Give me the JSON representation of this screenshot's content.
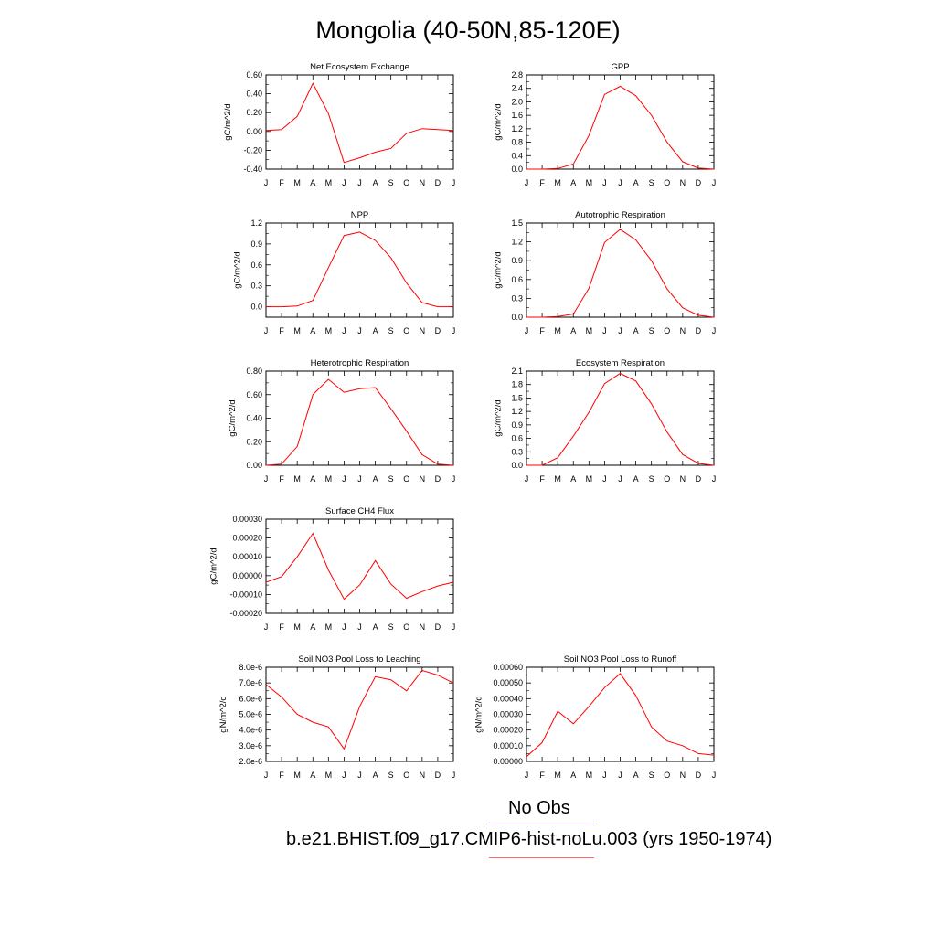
{
  "title": "Mongolia (40-50N,85-120E)",
  "legend": {
    "obs_label": "No Obs",
    "obs_color": "#6b6be6",
    "model_label": "b.e21.BHIST.f09_g17.CMIP6-hist-noLu.003 (yrs 1950-1974)",
    "model_color": "#ff6b6b"
  },
  "chart_data": [
    {
      "type": "line",
      "title": "Net Ecosystem Exchange",
      "ylabel": "gC/m^2/d",
      "categories": [
        "J",
        "F",
        "M",
        "A",
        "M",
        "J",
        "J",
        "A",
        "S",
        "O",
        "N",
        "D",
        "J"
      ],
      "ylim": [
        -0.4,
        0.6
      ],
      "yticks": [
        -0.4,
        -0.2,
        0.0,
        0.2,
        0.4,
        0.6
      ],
      "ytick_labels": [
        "-0.40",
        "-0.20",
        "0.00",
        "0.20",
        "0.40",
        "0.60"
      ],
      "series": [
        {
          "color": "#ff0000",
          "values": [
            0.01,
            0.02,
            0.16,
            0.51,
            0.19,
            -0.33,
            -0.28,
            -0.22,
            -0.18,
            -0.02,
            0.03,
            0.02,
            0.01
          ]
        }
      ]
    },
    {
      "type": "line",
      "title": "GPP",
      "ylabel": "gC/m^2/d",
      "categories": [
        "J",
        "F",
        "M",
        "A",
        "M",
        "J",
        "J",
        "A",
        "S",
        "O",
        "N",
        "D",
        "J"
      ],
      "ylim": [
        0,
        2.8
      ],
      "yticks": [
        0,
        0.4,
        0.8,
        1.2,
        1.6,
        2.0,
        2.4,
        2.8
      ],
      "ytick_labels": [
        "0.0",
        "0.4",
        "0.8",
        "1.2",
        "1.6",
        "2.0",
        "2.4",
        "2.8"
      ],
      "series": [
        {
          "color": "#ff0000",
          "values": [
            0.0,
            0.0,
            0.02,
            0.15,
            1.0,
            2.22,
            2.46,
            2.18,
            1.6,
            0.8,
            0.22,
            0.03,
            0.0
          ]
        }
      ]
    },
    {
      "type": "line",
      "title": "NPP",
      "ylabel": "gC/m^2/d",
      "categories": [
        "J",
        "F",
        "M",
        "A",
        "M",
        "J",
        "J",
        "A",
        "S",
        "O",
        "N",
        "D",
        "J"
      ],
      "ylim": [
        -0.15,
        1.2
      ],
      "yticks": [
        0.0,
        0.3,
        0.6,
        0.9,
        1.2
      ],
      "ytick_labels": [
        "0.0",
        "0.3",
        "0.6",
        "0.9",
        "1.2"
      ],
      "series": [
        {
          "color": "#ff0000",
          "values": [
            0.0,
            0.0,
            0.01,
            0.09,
            0.56,
            1.02,
            1.07,
            0.95,
            0.7,
            0.34,
            0.06,
            0.0,
            0.0
          ]
        }
      ]
    },
    {
      "type": "line",
      "title": "Autotrophic Respiration",
      "ylabel": "gC/m^2/d",
      "categories": [
        "J",
        "F",
        "M",
        "A",
        "M",
        "J",
        "J",
        "A",
        "S",
        "O",
        "N",
        "D",
        "J"
      ],
      "ylim": [
        0,
        1.5
      ],
      "yticks": [
        0.0,
        0.3,
        0.6,
        0.9,
        1.2,
        1.5
      ],
      "ytick_labels": [
        "0.0",
        "0.3",
        "0.6",
        "0.9",
        "1.2",
        "1.5"
      ],
      "series": [
        {
          "color": "#ff0000",
          "values": [
            0.0,
            0.0,
            0.01,
            0.05,
            0.46,
            1.19,
            1.4,
            1.23,
            0.9,
            0.45,
            0.15,
            0.03,
            0.0
          ]
        }
      ]
    },
    {
      "type": "line",
      "title": "Heterotrophic Respiration",
      "ylabel": "gC/m^2/d",
      "categories": [
        "J",
        "F",
        "M",
        "A",
        "M",
        "J",
        "J",
        "A",
        "S",
        "O",
        "N",
        "D",
        "J"
      ],
      "ylim": [
        0,
        0.8
      ],
      "yticks": [
        0.0,
        0.2,
        0.4,
        0.6,
        0.8
      ],
      "ytick_labels": [
        "0.00",
        "0.20",
        "0.40",
        "0.60",
        "0.80"
      ],
      "series": [
        {
          "color": "#ff0000",
          "values": [
            0.0,
            0.01,
            0.16,
            0.6,
            0.73,
            0.62,
            0.65,
            0.66,
            0.48,
            0.29,
            0.09,
            0.01,
            0.0
          ]
        }
      ]
    },
    {
      "type": "line",
      "title": "Ecosystem Respiration",
      "ylabel": "gC/m^2/d",
      "categories": [
        "J",
        "F",
        "M",
        "A",
        "M",
        "J",
        "J",
        "A",
        "S",
        "O",
        "N",
        "D",
        "J"
      ],
      "ylim": [
        0,
        2.1
      ],
      "yticks": [
        0.0,
        0.3,
        0.6,
        0.9,
        1.2,
        1.5,
        1.8,
        2.1
      ],
      "ytick_labels": [
        "0.0",
        "0.3",
        "0.6",
        "0.9",
        "1.2",
        "1.5",
        "1.8",
        "2.1"
      ],
      "series": [
        {
          "color": "#ff0000",
          "values": [
            0.0,
            0.0,
            0.17,
            0.65,
            1.18,
            1.82,
            2.05,
            1.88,
            1.37,
            0.74,
            0.24,
            0.04,
            0.0
          ]
        }
      ]
    },
    {
      "type": "line",
      "title": "Surface CH4 Flux",
      "ylabel": "gC/m^2/d",
      "categories": [
        "J",
        "F",
        "M",
        "A",
        "M",
        "J",
        "J",
        "A",
        "S",
        "O",
        "N",
        "D",
        "J"
      ],
      "ylim": [
        -0.0002,
        0.0003
      ],
      "yticks": [
        -0.0002,
        -0.0001,
        0.0,
        0.0001,
        0.0002,
        0.0003
      ],
      "ytick_labels": [
        "-0.00020",
        "-0.00010",
        "0.00000",
        "0.00010",
        "0.00020",
        "0.00030"
      ],
      "series": [
        {
          "color": "#ff0000",
          "values": [
            -3.5e-05,
            -5e-06,
            0.0001,
            0.000225,
            3e-05,
            -0.000125,
            -5e-05,
            8e-05,
            -4.5e-05,
            -0.00012,
            -8.5e-05,
            -5.5e-05,
            -3.5e-05
          ]
        }
      ]
    },
    {
      "type": "line",
      "title": "Soil NO3 Pool Loss to Leaching",
      "ylabel": "gN/m^2/d",
      "categories": [
        "J",
        "F",
        "M",
        "A",
        "M",
        "J",
        "J",
        "A",
        "S",
        "O",
        "N",
        "D",
        "J"
      ],
      "ylim": [
        2e-06,
        8e-06
      ],
      "yticks": [
        2e-06,
        3e-06,
        4e-06,
        5e-06,
        6e-06,
        7e-06,
        8e-06
      ],
      "ytick_labels": [
        "2.0e-6",
        "3.0e-6",
        "4.0e-6",
        "5.0e-6",
        "6.0e-6",
        "7.0e-6",
        "8.0e-6"
      ],
      "series": [
        {
          "color": "#ff0000",
          "values": [
            6.9e-06,
            6.1e-06,
            5e-06,
            4.5e-06,
            4.2e-06,
            2.8e-06,
            5.5e-06,
            7.4e-06,
            7.2e-06,
            6.5e-06,
            7.8e-06,
            7.5e-06,
            7e-06
          ]
        }
      ]
    },
    {
      "type": "line",
      "title": "Soil NO3 Pool Loss to Runoff",
      "ylabel": "gN/m^2/d",
      "categories": [
        "J",
        "F",
        "M",
        "A",
        "M",
        "J",
        "J",
        "A",
        "S",
        "O",
        "N",
        "D",
        "J"
      ],
      "ylim": [
        0,
        0.0006
      ],
      "yticks": [
        0,
        0.0001,
        0.0002,
        0.0003,
        0.0004,
        0.0005,
        0.0006
      ],
      "ytick_labels": [
        "0.00000",
        "0.00010",
        "0.00020",
        "0.00030",
        "0.00040",
        "0.00050",
        "0.00060"
      ],
      "series": [
        {
          "color": "#ff0000",
          "values": [
            3e-05,
            0.00012,
            0.00032,
            0.00024,
            0.00035,
            0.00047,
            0.00056,
            0.00042,
            0.00022,
            0.00013,
            0.0001,
            5e-05,
            4e-05
          ]
        }
      ]
    }
  ]
}
